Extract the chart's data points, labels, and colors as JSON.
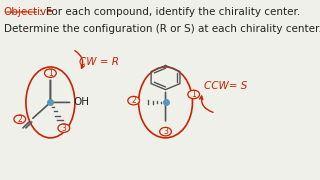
{
  "bg_color": "#f0f0eb",
  "title_text": "Objective",
  "line1": ": For each compound, identify the chirality center.",
  "line2": "Determine the configuration (R or S) at each chirality center.",
  "title_color": "#cc2200",
  "text_color": "#222222",
  "title_fontsize": 7.5,
  "body_fontsize": 7.5,
  "cw_label": "CW = R",
  "ccw_label": "CCW= S",
  "annotation_color": "#cc2200",
  "bond_color": "#555555",
  "chirality_color": "#5599bb",
  "circle_color": "#cc2200"
}
